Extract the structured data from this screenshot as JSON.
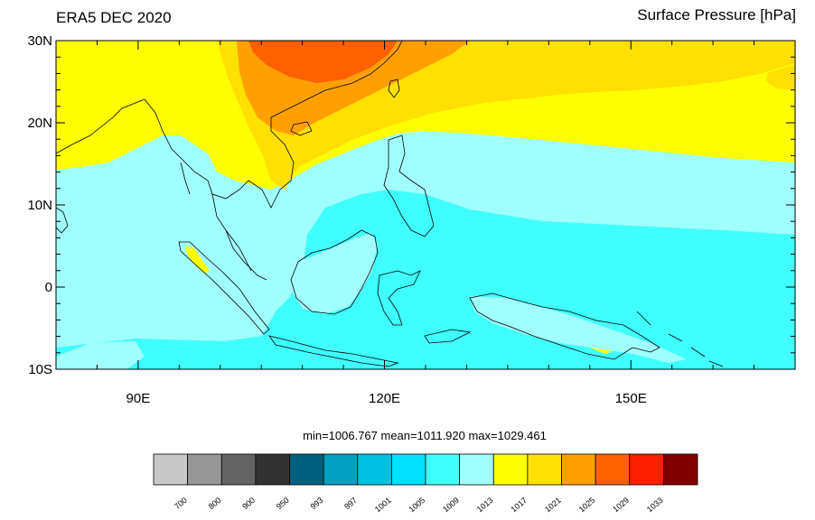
{
  "title_left": "ERA5 DEC 2020",
  "title_right": "Surface Pressure [hPa]",
  "stats_text": "min=1006.767  mean=1011.920  max=1029.461",
  "map": {
    "lon_range": [
      80,
      170
    ],
    "lat_range": [
      -10,
      30
    ],
    "lat_labels": [
      {
        "lat": 30,
        "text": "30N"
      },
      {
        "lat": 20,
        "text": "20N"
      },
      {
        "lat": 10,
        "text": "10N"
      },
      {
        "lat": 0,
        "text": "0"
      },
      {
        "lat": -10,
        "text": "10S"
      }
    ],
    "lon_labels": [
      {
        "lon": 90,
        "text": "90E"
      },
      {
        "lon": 120,
        "text": "120E"
      },
      {
        "lon": 150,
        "text": "150E"
      }
    ]
  },
  "colorbar": {
    "colors": [
      "#c8c8c8",
      "#969696",
      "#646464",
      "#323232",
      "#00607f",
      "#00a0c0",
      "#00c0e0",
      "#00e0ff",
      "#40ffff",
      "#a0ffff",
      "#ffff00",
      "#ffe000",
      "#ffa000",
      "#ff6000",
      "#ff2000",
      "#800000"
    ],
    "labels": [
      "700",
      "800",
      "900",
      "950",
      "993",
      "997",
      "1001",
      "1005",
      "1009",
      "1013",
      "1017",
      "1021",
      "1025",
      "1029",
      "1033"
    ]
  }
}
